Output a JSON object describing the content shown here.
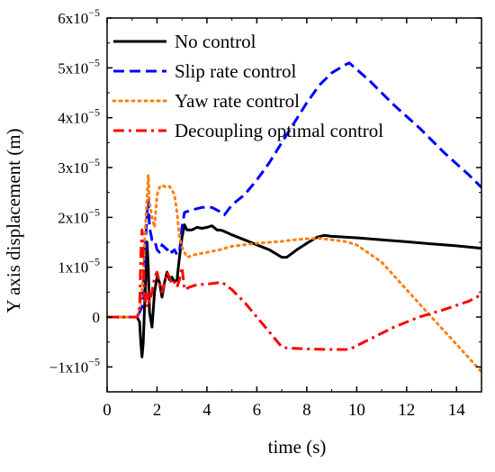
{
  "chart_data": {
    "type": "line",
    "xlabel": "time (s)",
    "ylabel": "Y axis displacement (m)",
    "xlim": [
      0,
      15
    ],
    "ylim": [
      -1.5e-05,
      6e-05
    ],
    "xticks": [
      0,
      2,
      4,
      6,
      8,
      10,
      12,
      14
    ],
    "xtick_labels": [
      "0",
      "2",
      "4",
      "6",
      "8",
      "10",
      "12",
      "14"
    ],
    "yticks": [
      -1e-05,
      0,
      1e-05,
      2e-05,
      3e-05,
      4e-05,
      5e-05,
      6e-05
    ],
    "ytick_mantissas": [
      "−1x10",
      "0",
      "1x10",
      "2x10",
      "3x10",
      "4x10",
      "5x10",
      "6x10"
    ],
    "ytick_exponents": [
      "−5",
      "",
      "−5",
      "−5",
      "−5",
      "−5",
      "−5",
      "−5"
    ],
    "grid": false,
    "legend_position": "top-left",
    "series": [
      {
        "name": "No control",
        "color": "#000000",
        "dash": "solid",
        "x": [
          0,
          1.2,
          1.3,
          1.35,
          1.4,
          1.45,
          1.5,
          1.55,
          1.6,
          1.65,
          1.7,
          1.8,
          1.9,
          2.0,
          2.1,
          2.2,
          2.3,
          2.4,
          2.5,
          2.6,
          2.7,
          2.8,
          2.9,
          3.0,
          3.1,
          3.2,
          3.4,
          3.6,
          3.8,
          4.0,
          4.2,
          4.4,
          4.6,
          5.0,
          5.5,
          6.0,
          6.5,
          7.0,
          7.2,
          7.6,
          8.0,
          8.4,
          8.7,
          9.0,
          10,
          11,
          12,
          13,
          14,
          15
        ],
        "y": [
          0,
          0,
          -1e-06,
          -5e-06,
          -8e-06,
          -5e-06,
          2e-06,
          8e-06,
          1.5e-05,
          1e-05,
          1e-06,
          -2e-06,
          5e-06,
          8e-06,
          7e-06,
          4e-06,
          7e-06,
          9e-06,
          7.5e-06,
          8e-06,
          7e-06,
          7.5e-06,
          1.2e-05,
          1.6e-05,
          1.85e-05,
          1.75e-05,
          1.75e-05,
          1.8e-05,
          1.78e-05,
          1.8e-05,
          1.83e-05,
          1.75e-05,
          1.74e-05,
          1.65e-05,
          1.55e-05,
          1.45e-05,
          1.35e-05,
          1.2e-05,
          1.2e-05,
          1.35e-05,
          1.48e-05,
          1.6e-05,
          1.64e-05,
          1.62e-05,
          1.59e-05,
          1.55e-05,
          1.51e-05,
          1.47e-05,
          1.43e-05,
          1.38e-05
        ]
      },
      {
        "name": "Slip rate control",
        "color": "#0000ff",
        "dash": "dashed",
        "x": [
          0,
          1.2,
          1.3,
          1.4,
          1.5,
          1.55,
          1.6,
          1.65,
          1.7,
          1.8,
          1.9,
          2.0,
          2.1,
          2.2,
          2.3,
          2.4,
          2.5,
          2.6,
          2.7,
          2.8,
          2.9,
          3.0,
          3.1,
          3.4,
          3.8,
          4.2,
          4.5,
          4.7,
          5.0,
          5.5,
          6.0,
          6.5,
          7.0,
          7.5,
          8.0,
          8.5,
          9.0,
          9.5,
          9.7,
          10.5,
          11.5,
          12.5,
          13.5,
          14.5,
          15
        ],
        "y": [
          0,
          0,
          1e-06,
          2e-06,
          1.1e-05,
          1.6e-05,
          2.1e-05,
          2.35e-05,
          1.8e-05,
          1.55e-05,
          1.55e-05,
          1.35e-05,
          1.3e-05,
          1.45e-05,
          1.4e-05,
          1.35e-05,
          1.4e-05,
          1.3e-05,
          1.35e-05,
          1.25e-05,
          1.3e-05,
          1.8e-05,
          2.1e-05,
          2.15e-05,
          2.2e-05,
          2.2e-05,
          2.12e-05,
          2.05e-05,
          2.25e-05,
          2.45e-05,
          2.75e-05,
          3.1e-05,
          3.5e-05,
          3.9e-05,
          4.3e-05,
          4.65e-05,
          4.9e-05,
          5.05e-05,
          5.1e-05,
          4.75e-05,
          4.25e-05,
          3.8e-05,
          3.3e-05,
          2.85e-05,
          2.6e-05
        ]
      },
      {
        "name": "Yaw  rate control",
        "color": "#ff7f0e",
        "dash": "dotted",
        "x": [
          0,
          1.2,
          1.3,
          1.4,
          1.5,
          1.6,
          1.65,
          1.7,
          1.8,
          1.9,
          2.0,
          2.1,
          2.2,
          2.3,
          2.4,
          2.5,
          2.6,
          2.7,
          2.8,
          2.9,
          3.0,
          3.2,
          3.5,
          4.0,
          4.5,
          5.0,
          5.5,
          6.0,
          6.5,
          7.0,
          7.5,
          8.0,
          8.5,
          9.0,
          9.5,
          10,
          11,
          12,
          13,
          14,
          15
        ],
        "y": [
          0,
          0,
          2e-06,
          5e-06,
          1.5e-05,
          2.4e-05,
          2.85e-05,
          2.3e-05,
          2e-05,
          1.8e-05,
          2.45e-05,
          2.6e-05,
          2.65e-05,
          2.62e-05,
          2.6e-05,
          2.62e-05,
          2.55e-05,
          2.45e-05,
          2.1e-05,
          1.6e-05,
          1.4e-05,
          1.2e-05,
          1.25e-05,
          1.3e-05,
          1.35e-05,
          1.42e-05,
          1.45e-05,
          1.48e-05,
          1.5e-05,
          1.52e-05,
          1.55e-05,
          1.57e-05,
          1.58e-05,
          1.55e-05,
          1.52e-05,
          1.45e-05,
          1.1e-05,
          5.5e-06,
          0.0,
          -5.5e-06,
          -1.1e-05
        ]
      },
      {
        "name": "Decoupling optimal control",
        "color": "#ff0000",
        "dash": "dashdot",
        "x": [
          0,
          1.2,
          1.3,
          1.35,
          1.4,
          1.45,
          1.5,
          1.55,
          1.6,
          1.65,
          1.7,
          1.8,
          1.9,
          2.0,
          2.1,
          2.2,
          2.3,
          2.4,
          2.5,
          2.6,
          2.7,
          2.8,
          2.9,
          3.0,
          3.1,
          3.3,
          3.6,
          4.0,
          4.3,
          4.6,
          5.0,
          5.5,
          6.0,
          6.5,
          7.0,
          7.2,
          8.0,
          9.0,
          9.7,
          10.5,
          11.5,
          12.5,
          13.5,
          14.5,
          15
        ],
        "y": [
          0,
          0,
          1e-06,
          1.2e-05,
          1.75e-05,
          1.2e-05,
          4e-06,
          3e-06,
          2e-06,
          5e-06,
          3e-06,
          5e-06,
          8e-06,
          9e-06,
          7e-06,
          5e-06,
          7e-06,
          9e-06,
          8e-06,
          6.5e-06,
          7e-06,
          6e-06,
          7.5e-06,
          1e-05,
          5.5e-06,
          6e-06,
          6.5e-06,
          6.6e-06,
          6.8e-06,
          7e-06,
          5.5e-06,
          3e-06,
          0.0,
          -3e-06,
          -6e-06,
          -6.2e-06,
          -6.4e-06,
          -6.5e-06,
          -6.5e-06,
          -4.5e-06,
          -2e-06,
          0.0,
          1.5e-06,
          3.2e-06,
          4.5e-06
        ]
      }
    ]
  }
}
